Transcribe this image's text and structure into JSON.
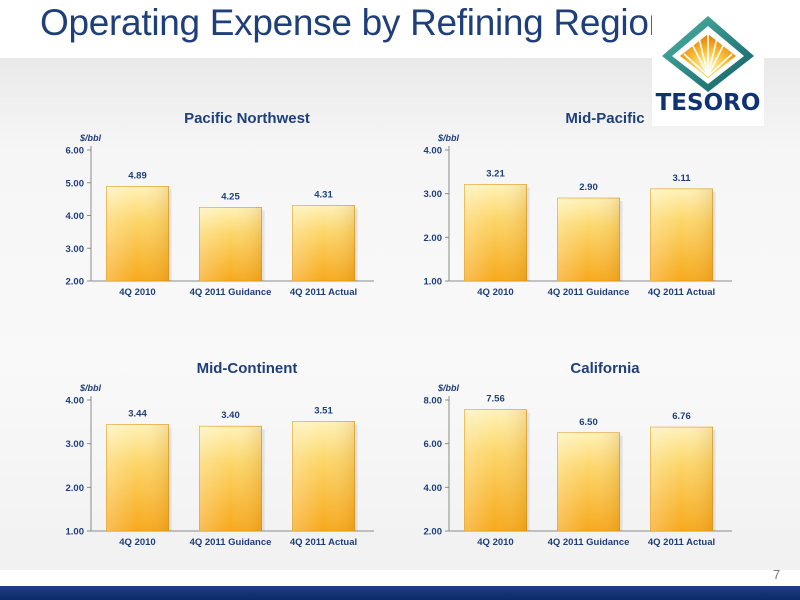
{
  "title": "Operating Expense by Refining Region",
  "logo": {
    "text": "TESORO"
  },
  "page_number": "7",
  "colors": {
    "title": "#1f3f7a",
    "bar_top": "#fff2b8",
    "bar_bottom": "#f7a81b",
    "footer": "#0b2a66"
  },
  "chart_data": [
    {
      "type": "bar",
      "title": "Pacific Northwest",
      "ylabel": "$/bbl",
      "categories": [
        "4Q 2010",
        "4Q 2011 Guidance",
        "4Q 2011 Actual"
      ],
      "values": [
        4.89,
        4.25,
        4.31
      ],
      "value_labels": [
        "4.89",
        "4.25",
        "4.31"
      ],
      "yticks": [
        "2.00",
        "3.00",
        "4.00",
        "5.00",
        "6.00"
      ],
      "ylim": [
        2,
        6
      ]
    },
    {
      "type": "bar",
      "title": "Mid-Pacific",
      "ylabel": "$/bbl",
      "categories": [
        "4Q 2010",
        "4Q 2011 Guidance",
        "4Q 2011 Actual"
      ],
      "values": [
        3.21,
        2.9,
        3.11
      ],
      "value_labels": [
        "3.21",
        "2.90",
        "3.11"
      ],
      "yticks": [
        "1.00",
        "2.00",
        "3.00",
        "4.00"
      ],
      "ylim": [
        1,
        4
      ]
    },
    {
      "type": "bar",
      "title": "Mid-Continent",
      "ylabel": "$/bbl",
      "categories": [
        "4Q 2010",
        "4Q 2011 Guidance",
        "4Q 2011 Actual"
      ],
      "values": [
        3.44,
        3.4,
        3.51
      ],
      "value_labels": [
        "3.44",
        "3.40",
        "3.51"
      ],
      "yticks": [
        "1.00",
        "2.00",
        "3.00",
        "4.00"
      ],
      "ylim": [
        1,
        4
      ]
    },
    {
      "type": "bar",
      "title": "California",
      "ylabel": "$/bbl",
      "categories": [
        "4Q 2010",
        "4Q 2011 Guidance",
        "4Q 2011 Actual"
      ],
      "values": [
        7.56,
        6.5,
        6.76
      ],
      "value_labels": [
        "7.56",
        "6.50",
        "6.76"
      ],
      "yticks": [
        "2.00",
        "4.00",
        "6.00",
        "8.00"
      ],
      "ylim": [
        2,
        8
      ]
    }
  ]
}
